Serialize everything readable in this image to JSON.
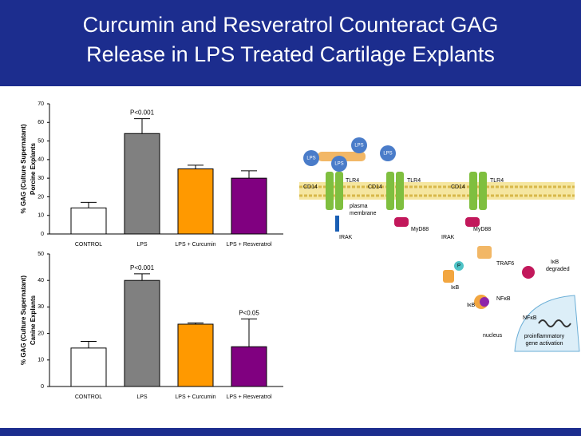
{
  "title": [
    "Curcumin and Resveratrol Counteract GAG",
    "Release in LPS Treated Cartilage Explants"
  ],
  "chart_data": [
    {
      "type": "bar",
      "ylabel": [
        "% GAG (Culture Supernatant)",
        "Porcine Explants"
      ],
      "categories": [
        "CONTROL",
        "LPS",
        "LPS + Curcumin",
        "LPS + Resveratrol"
      ],
      "values": [
        14,
        54,
        35,
        30
      ],
      "errors": [
        3,
        8,
        2,
        4
      ],
      "colors": [
        "#ffffff",
        "#808080",
        "#ff9900",
        "#800080"
      ],
      "ylim": [
        0,
        70
      ],
      "yticks": [
        0,
        10,
        20,
        30,
        40,
        50,
        60,
        70
      ],
      "annotations": [
        "P<0.001"
      ]
    },
    {
      "type": "bar",
      "ylabel": [
        "% GAG (Culture Supernatant)",
        "Canine Explants"
      ],
      "categories": [
        "CONTROL",
        "LPS",
        "LPS + Curcumin",
        "LPS + Resveratrol"
      ],
      "values": [
        14.5,
        40,
        23.5,
        15
      ],
      "errors": [
        2.5,
        2.5,
        0.5,
        10.5
      ],
      "colors": [
        "#ffffff",
        "#808080",
        "#ff9900",
        "#800080"
      ],
      "ylim": [
        0,
        50
      ],
      "yticks": [
        0,
        10,
        20,
        30,
        40,
        50
      ],
      "annotations": [
        "P<0.001",
        "P<0.05"
      ]
    }
  ],
  "diagram": {
    "lps": "LPS",
    "cd14": "CD14",
    "tlr4": "TLR4",
    "plasma_membrane": [
      "plasma",
      "membrane"
    ],
    "myd88": "MyD88",
    "irak": "IRAK",
    "traf6": "TRAF6",
    "p": "P",
    "ikb": "IκB",
    "ikb_degraded": [
      "IκB",
      "degraded"
    ],
    "nfkb": "NFκB",
    "nucleus": "nucleus",
    "gene_activation": [
      "proinflammatory",
      "gene activation"
    ]
  }
}
